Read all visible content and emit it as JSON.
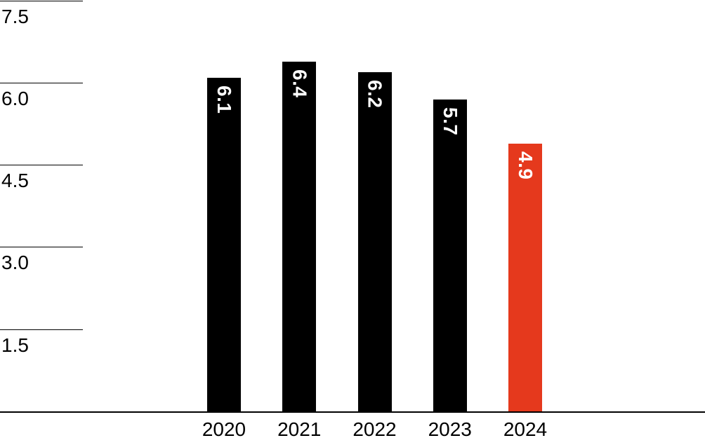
{
  "chart_data": {
    "type": "bar",
    "categories": [
      "2020",
      "2021",
      "2022",
      "2023",
      "2024"
    ],
    "values": [
      6.1,
      6.4,
      6.2,
      5.7,
      4.9
    ],
    "value_labels": [
      "6.1",
      "6.4",
      "6.2",
      "5.7",
      "4.9"
    ],
    "title": "",
    "xlabel": "",
    "ylabel": "",
    "ylim": [
      0,
      7.5
    ],
    "yticks": [
      7.5,
      6.0,
      4.5,
      3.0,
      1.5
    ],
    "ytick_labels": [
      "7.5",
      "6.0",
      "4.5",
      "3.0",
      "1.5"
    ],
    "grid": "short left tick stubs only, full-width baseline",
    "legend": "none",
    "value_labels_rotation": "90deg clockwise, inside bar near top",
    "bar_colors": [
      "#000000",
      "#000000",
      "#000000",
      "#000000",
      "#E5391D"
    ],
    "highlight_index": 4,
    "value_label_color": "#ffffff",
    "axis_color": "#000000",
    "text_color": "#000000",
    "background_color": "#ffffff"
  }
}
